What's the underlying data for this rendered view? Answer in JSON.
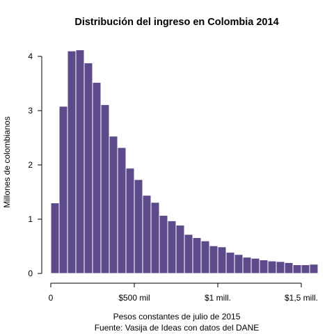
{
  "chart_data": {
    "type": "bar",
    "title": "Distribución del ingreso en Colombia 2014",
    "xlabel": "Pesos constantes de julio de 2015",
    "caption": "Fuente: Vasija de Ideas con datos del DANE",
    "ylabel": "Millones de colombianos",
    "bar_color": "#5c4a8a",
    "bin_width": 50000,
    "x_start": 0,
    "xlim": [
      0,
      1600000
    ],
    "ylim": [
      0,
      4
    ],
    "x_ticks": [
      {
        "value": 0,
        "label": "0"
      },
      {
        "value": 500000,
        "label": "$500 mil"
      },
      {
        "value": 1000000,
        "label": "$1 mill."
      },
      {
        "value": 1500000,
        "label": "$1,5 mill."
      }
    ],
    "y_ticks": [
      {
        "value": 0,
        "label": "0"
      },
      {
        "value": 1,
        "label": "1"
      },
      {
        "value": 2,
        "label": "2"
      },
      {
        "value": 3,
        "label": "3"
      },
      {
        "value": 4,
        "label": "4"
      }
    ],
    "values": [
      1.3,
      3.08,
      4.1,
      4.12,
      3.88,
      3.52,
      3.11,
      2.53,
      2.32,
      1.94,
      1.73,
      1.44,
      1.31,
      1.07,
      0.97,
      0.89,
      0.72,
      0.66,
      0.6,
      0.51,
      0.49,
      0.39,
      0.35,
      0.3,
      0.28,
      0.25,
      0.23,
      0.22,
      0.2,
      0.16,
      0.16,
      0.17
    ]
  }
}
